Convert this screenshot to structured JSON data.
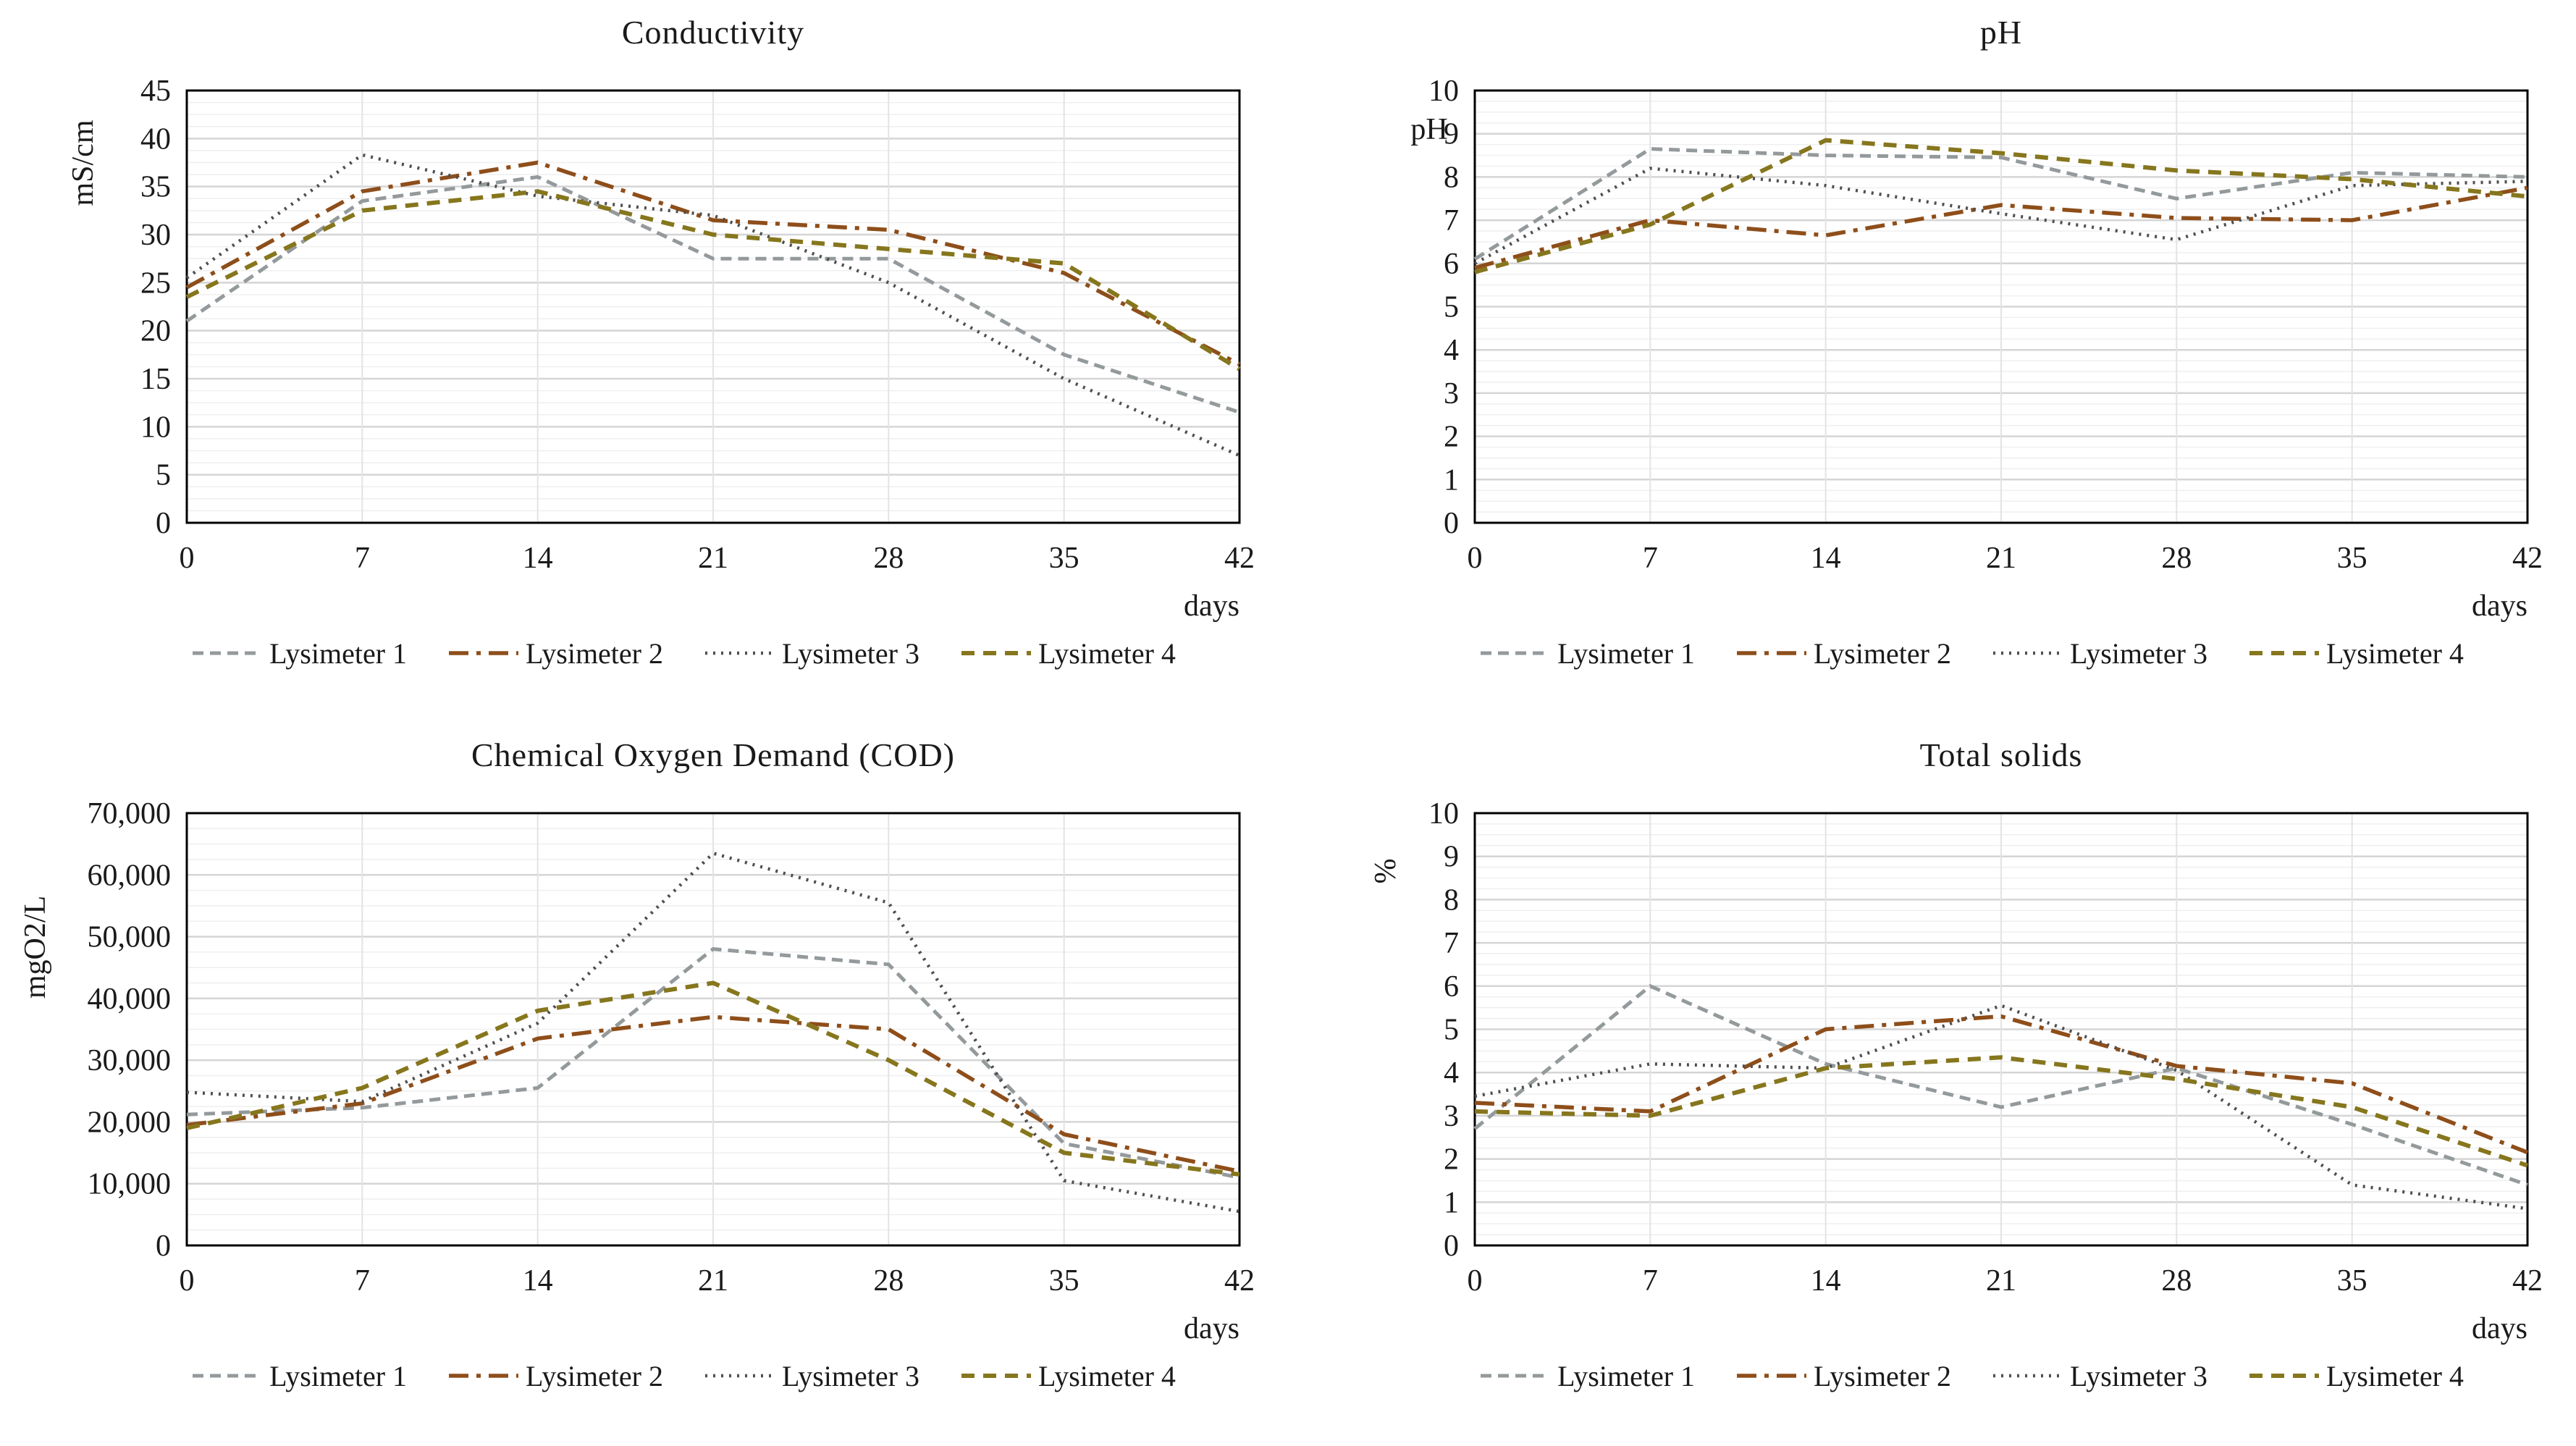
{
  "page": {
    "background": "#ffffff"
  },
  "palette": {
    "axis": "#000000",
    "grid_minor": "#efefef",
    "grid_major": "#d5d5d5",
    "grid_vertical": "#e3e3e3",
    "text": "#1a1a1a"
  },
  "series_styles": [
    {
      "name": "Lysimeter 1",
      "color": "#949a9c",
      "line_style": "dashed"
    },
    {
      "name": "Lysimeter 2",
      "color": "#8e4e1a",
      "line_style": "dash-dot"
    },
    {
      "name": "Lysimeter 3",
      "color": "#4f4f4f",
      "line_style": "dotted"
    },
    {
      "name": "Lysimeter 4",
      "color": "#86761d",
      "line_style": "wide-dash"
    }
  ],
  "chart_data": [
    {
      "type": "line",
      "title": "Conductivity",
      "ylabel": "mS/cm",
      "ylabel_rotated": true,
      "xlabel": "days",
      "x": [
        0,
        7,
        14,
        21,
        28,
        35,
        42
      ],
      "ylim": [
        0,
        45
      ],
      "ymajor": 5,
      "yminor": 1.25,
      "ytick_format": "plain",
      "grid": true,
      "legend_position": "bottom",
      "series": [
        {
          "name": "Lysimeter 1",
          "values": [
            21,
            33.5,
            36,
            27.5,
            27.5,
            17.5,
            11.5
          ]
        },
        {
          "name": "Lysimeter 2",
          "values": [
            24.5,
            34.5,
            37.5,
            31.5,
            30.5,
            26,
            16.5
          ]
        },
        {
          "name": "Lysimeter 3",
          "values": [
            25.5,
            38.3,
            34,
            32,
            25,
            15,
            7
          ]
        },
        {
          "name": "Lysimeter 4",
          "values": [
            23.5,
            32.5,
            34.5,
            30,
            28.5,
            27,
            16
          ]
        }
      ]
    },
    {
      "type": "line",
      "title": "pH",
      "ylabel": "pH",
      "ylabel_rotated": false,
      "xlabel": "days",
      "x": [
        0,
        7,
        14,
        21,
        28,
        35,
        42
      ],
      "ylim": [
        0,
        10
      ],
      "ymajor": 1,
      "yminor": 0.25,
      "ytick_format": "plain",
      "grid": true,
      "legend_position": "bottom",
      "series": [
        {
          "name": "Lysimeter 1",
          "values": [
            6.1,
            8.65,
            8.5,
            8.45,
            7.5,
            8.1,
            8.0
          ]
        },
        {
          "name": "Lysimeter 2",
          "values": [
            5.9,
            7.0,
            6.65,
            7.35,
            7.05,
            7.0,
            7.75
          ]
        },
        {
          "name": "Lysimeter 3",
          "values": [
            6.0,
            8.2,
            7.8,
            7.15,
            6.55,
            7.8,
            7.9
          ]
        },
        {
          "name": "Lysimeter 4",
          "values": [
            5.8,
            6.9,
            8.85,
            8.55,
            8.15,
            7.95,
            7.55
          ]
        }
      ]
    },
    {
      "type": "line",
      "title": "Chemical Oxygen Demand (COD)",
      "ylabel": "mgO2/L",
      "ylabel_rotated": true,
      "xlabel": "days",
      "x": [
        0,
        7,
        14,
        21,
        28,
        35,
        42
      ],
      "ylim": [
        0,
        70000
      ],
      "ymajor": 10000,
      "yminor": 2500,
      "ytick_format": "thousands",
      "grid": true,
      "legend_position": "bottom",
      "series": [
        {
          "name": "Lysimeter 1",
          "values": [
            21200,
            22300,
            25500,
            48000,
            45500,
            16500,
            11000
          ]
        },
        {
          "name": "Lysimeter 2",
          "values": [
            19500,
            23000,
            33500,
            37000,
            35000,
            18000,
            12000
          ]
        },
        {
          "name": "Lysimeter 3",
          "values": [
            24800,
            23300,
            36000,
            63500,
            55500,
            10500,
            5500
          ]
        },
        {
          "name": "Lysimeter 4",
          "values": [
            19000,
            25500,
            38000,
            42500,
            30000,
            15000,
            11500
          ]
        }
      ]
    },
    {
      "type": "line",
      "title": "Total solids",
      "ylabel": "%",
      "ylabel_rotated": true,
      "xlabel": "days",
      "x": [
        0,
        7,
        14,
        21,
        28,
        35,
        42
      ],
      "ylim": [
        0,
        10
      ],
      "ymajor": 1,
      "yminor": 0.25,
      "ytick_format": "plain",
      "grid": true,
      "legend_position": "bottom",
      "series": [
        {
          "name": "Lysimeter 1",
          "values": [
            2.7,
            6.0,
            4.2,
            3.2,
            4.1,
            2.8,
            1.4
          ]
        },
        {
          "name": "Lysimeter 2",
          "values": [
            3.3,
            3.1,
            5.0,
            5.3,
            4.15,
            3.75,
            2.15
          ]
        },
        {
          "name": "Lysimeter 3",
          "values": [
            3.45,
            4.2,
            4.1,
            5.55,
            4.05,
            1.4,
            0.85
          ]
        },
        {
          "name": "Lysimeter 4",
          "values": [
            3.1,
            3.0,
            4.1,
            4.35,
            3.85,
            3.2,
            1.85
          ]
        }
      ]
    }
  ]
}
